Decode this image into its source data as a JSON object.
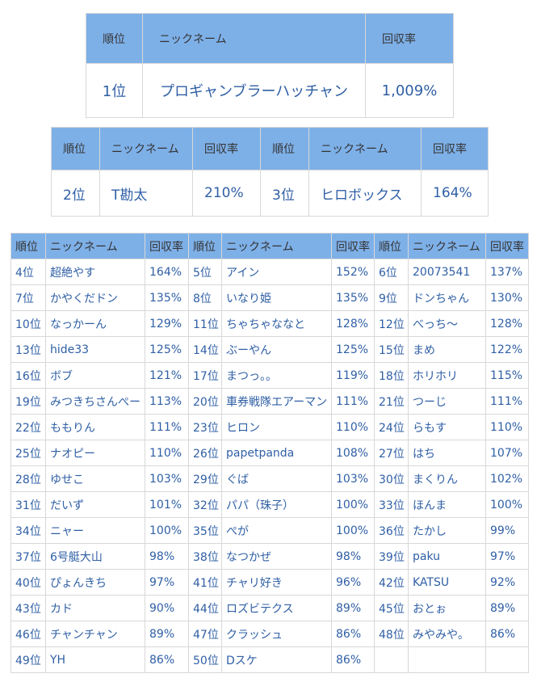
{
  "headers": {
    "rank": "順位",
    "nickname": "ニックネーム",
    "rate": "回収率"
  },
  "first": {
    "rank": "1位",
    "nickname": "プロギャンブラーハッチャン",
    "rate": "1,009%"
  },
  "second_third": [
    {
      "rank": "2位",
      "nickname": "T勘太",
      "rate": "210%"
    },
    {
      "rank": "3位",
      "nickname": "ヒロボックス",
      "rate": "164%"
    }
  ],
  "rows": [
    [
      {
        "rank": "4位",
        "nickname": "超絶やす",
        "rate": "164%"
      },
      {
        "rank": "5位",
        "nickname": "アイン",
        "rate": "152%"
      },
      {
        "rank": "6位",
        "nickname": "20073541",
        "rate": "137%"
      }
    ],
    [
      {
        "rank": "7位",
        "nickname": "かやくだドン",
        "rate": "135%"
      },
      {
        "rank": "8位",
        "nickname": "いなり姫",
        "rate": "135%"
      },
      {
        "rank": "9位",
        "nickname": "ドンちゃん",
        "rate": "130%"
      }
    ],
    [
      {
        "rank": "10位",
        "nickname": "なっかーん",
        "rate": "129%"
      },
      {
        "rank": "11位",
        "nickname": "ちゃちゃななと",
        "rate": "128%"
      },
      {
        "rank": "12位",
        "nickname": "べっち～",
        "rate": "128%"
      }
    ],
    [
      {
        "rank": "13位",
        "nickname": "hide33",
        "rate": "125%"
      },
      {
        "rank": "14位",
        "nickname": "ぶーやん",
        "rate": "125%"
      },
      {
        "rank": "15位",
        "nickname": "まめ",
        "rate": "122%"
      }
    ],
    [
      {
        "rank": "16位",
        "nickname": "ボブ",
        "rate": "121%"
      },
      {
        "rank": "17位",
        "nickname": "まつっ。。",
        "rate": "119%"
      },
      {
        "rank": "18位",
        "nickname": "ホリホリ",
        "rate": "115%"
      }
    ],
    [
      {
        "rank": "19位",
        "nickname": "みつきちさんぺー",
        "rate": "113%"
      },
      {
        "rank": "20位",
        "nickname": "車券戦隊エアーマン",
        "rate": "111%"
      },
      {
        "rank": "21位",
        "nickname": "つーじ",
        "rate": "111%"
      }
    ],
    [
      {
        "rank": "22位",
        "nickname": "ももりん",
        "rate": "111%"
      },
      {
        "rank": "23位",
        "nickname": "ヒロン",
        "rate": "110%"
      },
      {
        "rank": "24位",
        "nickname": "らもす",
        "rate": "110%"
      }
    ],
    [
      {
        "rank": "25位",
        "nickname": "ナオピー",
        "rate": "110%"
      },
      {
        "rank": "26位",
        "nickname": "papetpanda",
        "rate": "108%"
      },
      {
        "rank": "27位",
        "nickname": "はち",
        "rate": "107%"
      }
    ],
    [
      {
        "rank": "28位",
        "nickname": "ゆせこ",
        "rate": "103%"
      },
      {
        "rank": "29位",
        "nickname": "ぐば",
        "rate": "103%"
      },
      {
        "rank": "30位",
        "nickname": "まくりん",
        "rate": "102%"
      }
    ],
    [
      {
        "rank": "31位",
        "nickname": "だいず",
        "rate": "101%"
      },
      {
        "rank": "32位",
        "nickname": "パパ（珠子）",
        "rate": "100%"
      },
      {
        "rank": "33位",
        "nickname": "ほんま",
        "rate": "100%"
      }
    ],
    [
      {
        "rank": "34位",
        "nickname": "ニャー",
        "rate": "100%"
      },
      {
        "rank": "35位",
        "nickname": "ぺが",
        "rate": "100%"
      },
      {
        "rank": "36位",
        "nickname": "たかし",
        "rate": "99%"
      }
    ],
    [
      {
        "rank": "37位",
        "nickname": "6号艇大山",
        "rate": "98%"
      },
      {
        "rank": "38位",
        "nickname": "なつかぜ",
        "rate": "98%"
      },
      {
        "rank": "39位",
        "nickname": "paku",
        "rate": "97%"
      }
    ],
    [
      {
        "rank": "40位",
        "nickname": "ぴょんきち",
        "rate": "97%"
      },
      {
        "rank": "41位",
        "nickname": "チャリ好き",
        "rate": "96%"
      },
      {
        "rank": "42位",
        "nickname": "KATSU",
        "rate": "92%"
      }
    ],
    [
      {
        "rank": "43位",
        "nickname": "カド",
        "rate": "90%"
      },
      {
        "rank": "44位",
        "nickname": "ロズビテクス",
        "rate": "89%"
      },
      {
        "rank": "45位",
        "nickname": "おとぉ",
        "rate": "89%"
      }
    ],
    [
      {
        "rank": "46位",
        "nickname": "チャンチャン",
        "rate": "89%"
      },
      {
        "rank": "47位",
        "nickname": "クラッシュ",
        "rate": "86%"
      },
      {
        "rank": "48位",
        "nickname": "みやみや。",
        "rate": "86%"
      }
    ],
    [
      {
        "rank": "49位",
        "nickname": "YH",
        "rate": "86%"
      },
      {
        "rank": "50位",
        "nickname": "Dスケ",
        "rate": "86%"
      }
    ]
  ]
}
